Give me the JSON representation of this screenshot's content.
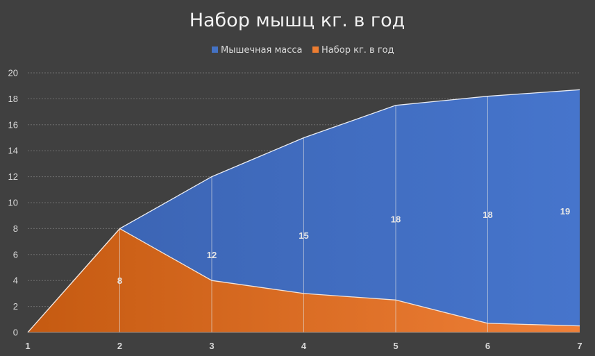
{
  "chart_data": {
    "type": "area",
    "title": "Набор мышц кг. в год",
    "x": [
      1,
      2,
      3,
      4,
      5,
      6,
      7
    ],
    "categories": [
      "1",
      "2",
      "3",
      "4",
      "5",
      "6",
      "7"
    ],
    "ylim": [
      0,
      20
    ],
    "yticks": [
      "0",
      "2",
      "4",
      "6",
      "8",
      "10",
      "12",
      "14",
      "16",
      "18",
      "20"
    ],
    "grid": true,
    "legend_position": "top",
    "series": [
      {
        "name": "Мышечная масса",
        "values": [
          0,
          8,
          12,
          15,
          17.5,
          18.2,
          18.7
        ],
        "labels": [
          "",
          "",
          "12",
          "15",
          "18",
          "18",
          "19"
        ],
        "color": "#4472c4"
      },
      {
        "name": "Набор кг. в год",
        "values": [
          0,
          8,
          4,
          3,
          2.5,
          0.7,
          0.5
        ],
        "labels": [
          "",
          "8",
          "",
          "",
          "",
          "",
          ""
        ],
        "color": "#ed7d31"
      }
    ]
  }
}
